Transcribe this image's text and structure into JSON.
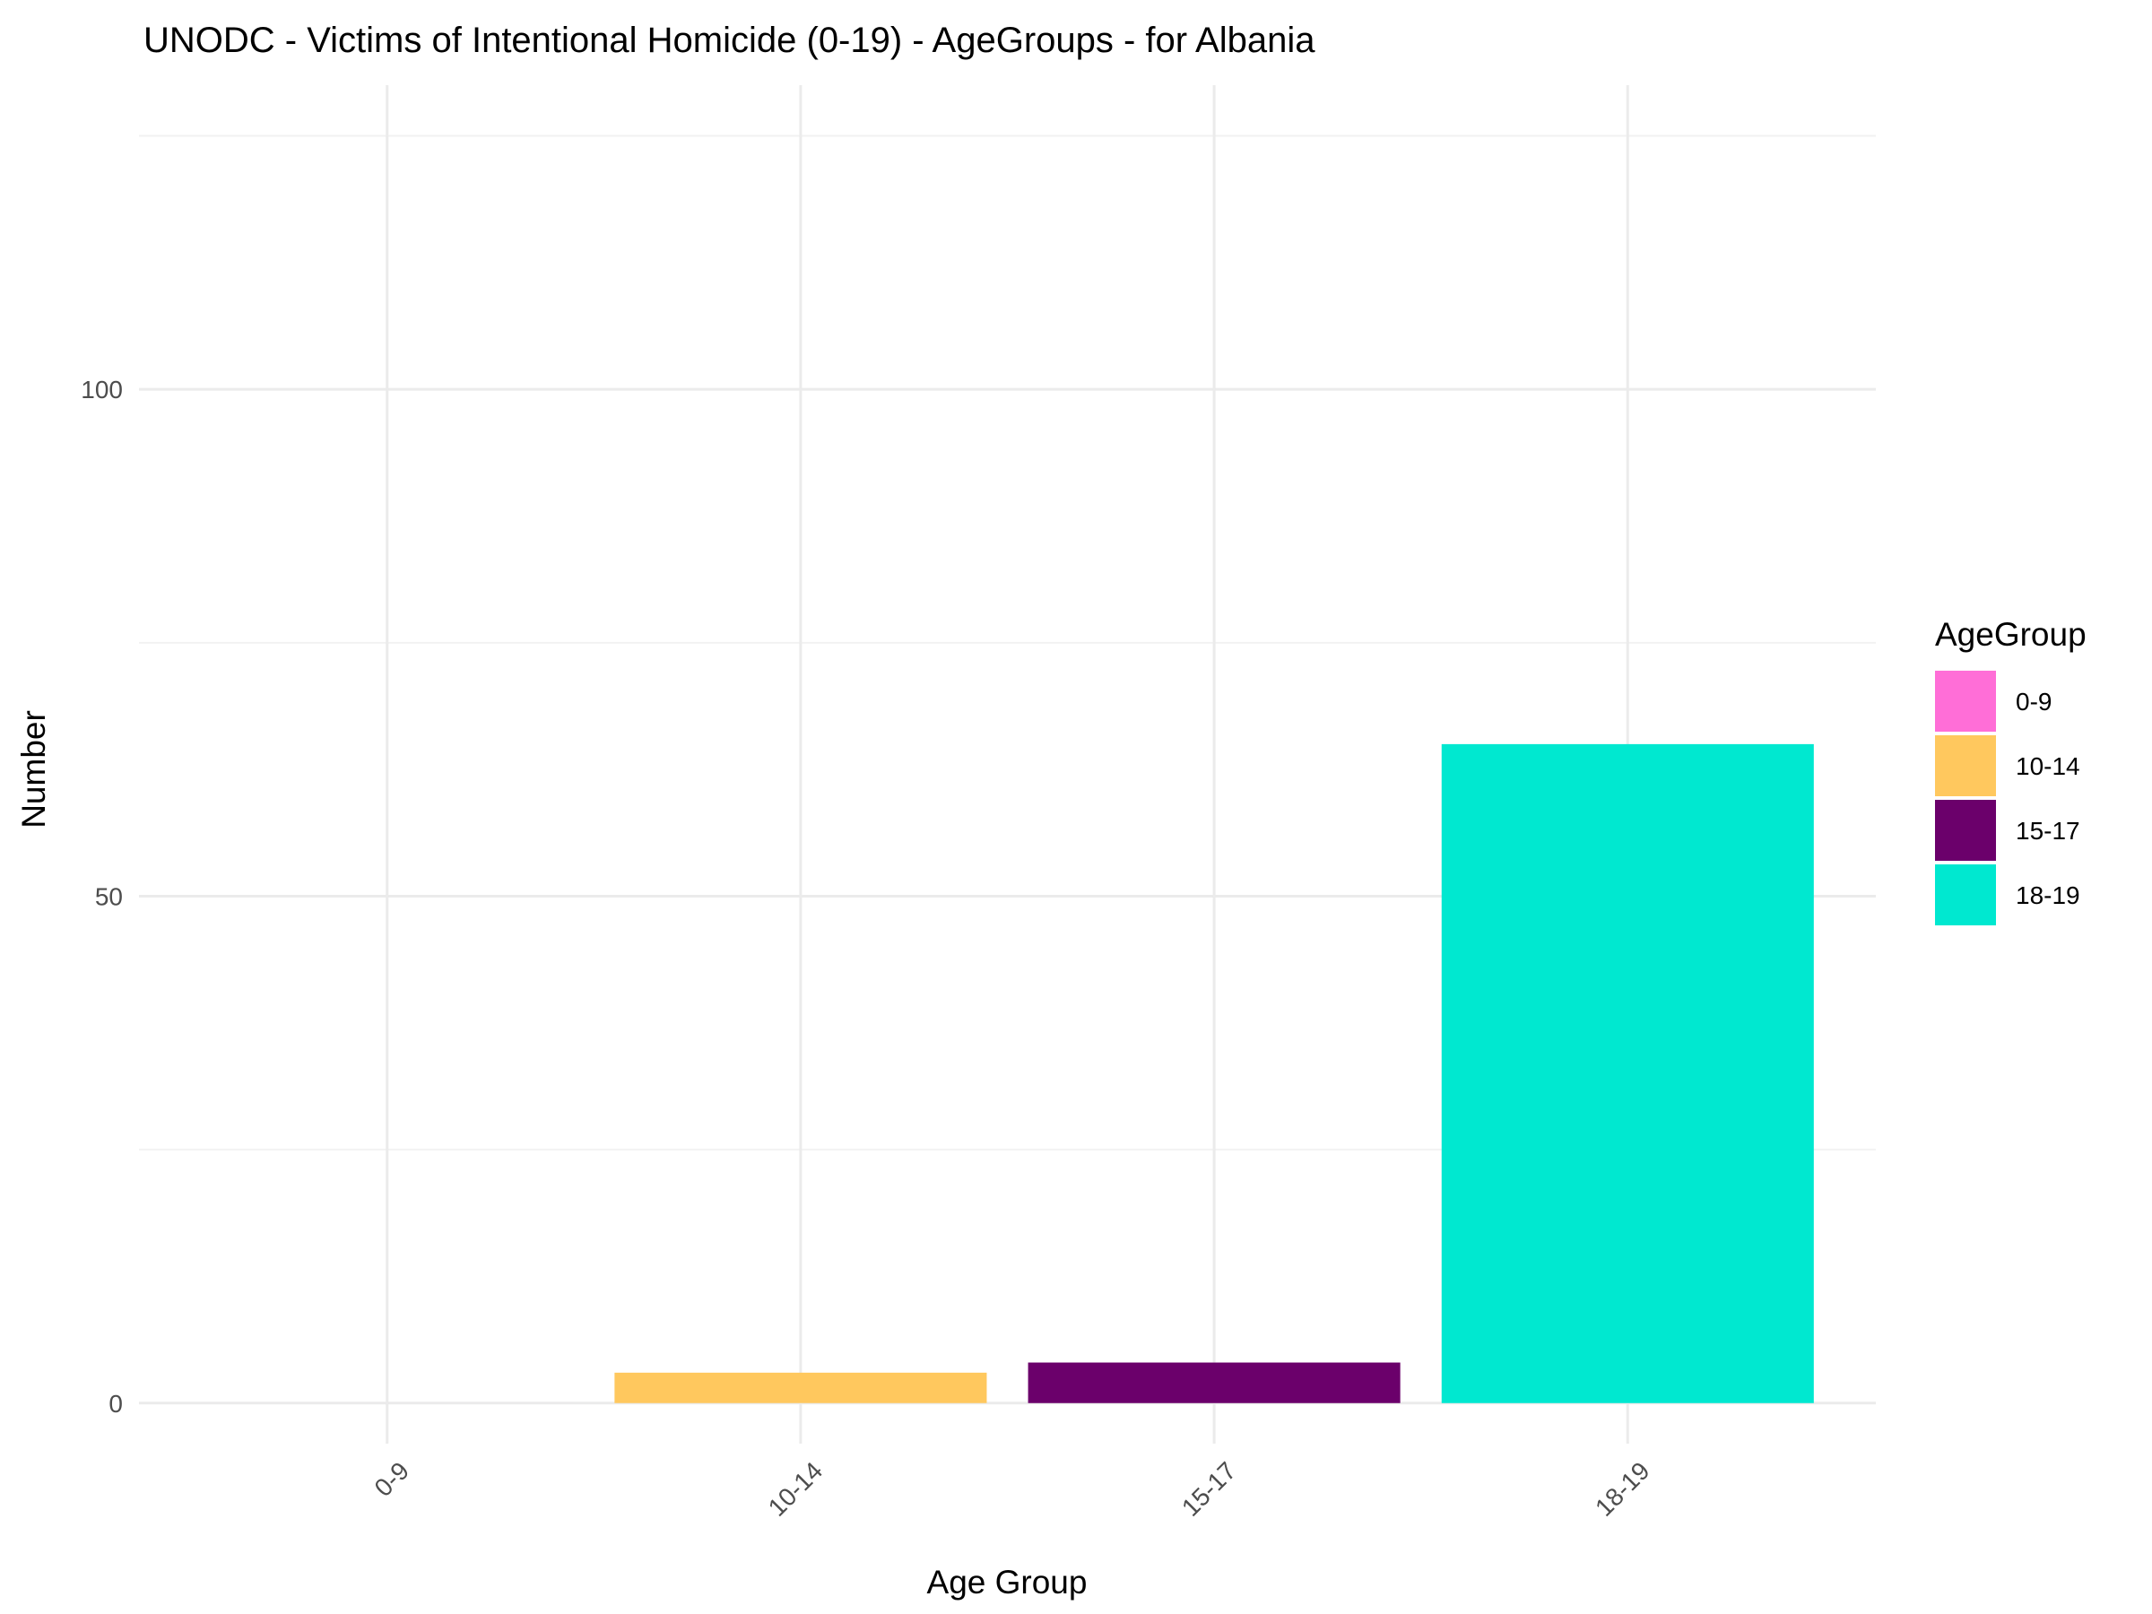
{
  "chart_data": {
    "type": "bar",
    "title": "UNODC - Victims of Intentional Homicide (0-19) - AgeGroups - for Albania",
    "xlabel": "Age Group",
    "ylabel": "Number",
    "categories": [
      "0-9",
      "10-14",
      "15-17",
      "18-19"
    ],
    "values": [
      0,
      3,
      4,
      65
    ],
    "colors": [
      "#FF6ED7",
      "#FFC85E",
      "#6B006B",
      "#00E8D0"
    ],
    "ylim": [
      -4,
      130
    ],
    "yticks": [
      0,
      50,
      100
    ],
    "grid": true,
    "legend": {
      "title": "AgeGroup",
      "position": "right",
      "entries": [
        "0-9",
        "10-14",
        "15-17",
        "18-19"
      ]
    }
  }
}
